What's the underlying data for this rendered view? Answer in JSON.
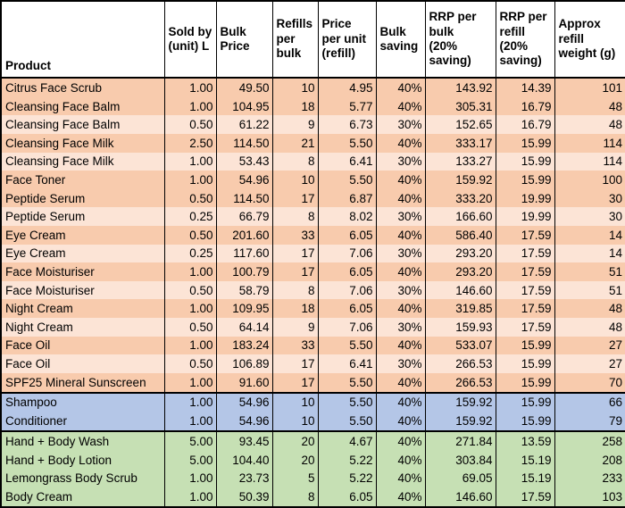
{
  "chart_data": {
    "type": "table",
    "columns": [
      "Product",
      "Sold by (unit) L",
      "Bulk Price",
      "Refills per bulk",
      "Price per unit (refill)",
      "Bulk saving",
      "RRP per bulk (20% saving)",
      "RRP per refill (20% saving)",
      "Approx refill weight (g)"
    ],
    "rows": [
      [
        "Citrus Face Scrub",
        "1.00",
        "49.50",
        "10",
        "4.95",
        "40%",
        "143.92",
        "14.39",
        "101"
      ],
      [
        "Cleansing Face Balm",
        "1.00",
        "104.95",
        "18",
        "5.77",
        "40%",
        "305.31",
        "16.79",
        "48"
      ],
      [
        "Cleansing Face Balm",
        "0.50",
        "61.22",
        "9",
        "6.73",
        "30%",
        "152.65",
        "16.79",
        "48"
      ],
      [
        "Cleansing Face Milk",
        "2.50",
        "114.50",
        "21",
        "5.50",
        "40%",
        "333.17",
        "15.99",
        "114"
      ],
      [
        "Cleansing Face Milk",
        "1.00",
        "53.43",
        "8",
        "6.41",
        "30%",
        "133.27",
        "15.99",
        "114"
      ],
      [
        "Face Toner",
        "1.00",
        "54.96",
        "10",
        "5.50",
        "40%",
        "159.92",
        "15.99",
        "100"
      ],
      [
        "Peptide Serum",
        "0.50",
        "114.50",
        "17",
        "6.87",
        "40%",
        "333.20",
        "19.99",
        "30"
      ],
      [
        "Peptide Serum",
        "0.25",
        "66.79",
        "8",
        "8.02",
        "30%",
        "166.60",
        "19.99",
        "30"
      ],
      [
        "Eye Cream",
        "0.50",
        "201.60",
        "33",
        "6.05",
        "40%",
        "586.40",
        "17.59",
        "14"
      ],
      [
        "Eye Cream",
        "0.25",
        "117.60",
        "17",
        "7.06",
        "30%",
        "293.20",
        "17.59",
        "14"
      ],
      [
        "Face Moisturiser",
        "1.00",
        "100.79",
        "17",
        "6.05",
        "40%",
        "293.20",
        "17.59",
        "51"
      ],
      [
        "Face Moisturiser",
        "0.50",
        "58.79",
        "8",
        "7.06",
        "30%",
        "146.60",
        "17.59",
        "51"
      ],
      [
        "Night Cream",
        "1.00",
        "109.95",
        "18",
        "6.05",
        "40%",
        "319.85",
        "17.59",
        "48"
      ],
      [
        "Night Cream",
        "0.50",
        "64.14",
        "9",
        "7.06",
        "30%",
        "159.93",
        "17.59",
        "48"
      ],
      [
        "Face Oil",
        "1.00",
        "183.24",
        "33",
        "5.50",
        "40%",
        "533.07",
        "15.99",
        "27"
      ],
      [
        "Face Oil",
        "0.50",
        "106.89",
        "17",
        "6.41",
        "30%",
        "266.53",
        "15.99",
        "27"
      ],
      [
        "SPF25 Mineral Sunscreen",
        "1.00",
        "91.60",
        "17",
        "5.50",
        "40%",
        "266.53",
        "15.99",
        "70"
      ],
      [
        "Shampoo",
        "1.00",
        "54.96",
        "10",
        "5.50",
        "40%",
        "159.92",
        "15.99",
        "66"
      ],
      [
        "Conditioner",
        "1.00",
        "54.96",
        "10",
        "5.50",
        "40%",
        "159.92",
        "15.99",
        "79"
      ],
      [
        "Hand + Body Wash",
        "5.00",
        "93.45",
        "20",
        "4.67",
        "40%",
        "271.84",
        "13.59",
        "258"
      ],
      [
        "Hand + Body Lotion",
        "5.00",
        "104.40",
        "20",
        "5.22",
        "40%",
        "303.84",
        "15.19",
        "208"
      ],
      [
        "Lemongrass Body Scrub",
        "1.00",
        "23.73",
        "5",
        "5.22",
        "40%",
        "69.05",
        "15.19",
        "233"
      ],
      [
        "Body Cream",
        "1.00",
        "50.39",
        "8",
        "6.05",
        "40%",
        "146.60",
        "17.59",
        "103"
      ]
    ],
    "row_tones": [
      "peachDark",
      "peachDark",
      "peachLight",
      "peachDark",
      "peachLight",
      "peachDark",
      "peachDark",
      "peachLight",
      "peachDark",
      "peachLight",
      "peachDark",
      "peachLight",
      "peachDark",
      "peachLight",
      "peachDark",
      "peachLight",
      "peachDark",
      "blue",
      "blue",
      "green",
      "green",
      "green",
      "green"
    ],
    "section_starts": [
      17,
      19
    ],
    "layout_hints": "grid on; header row bold on white; face products peach, hair products blue, body products green"
  },
  "header": {
    "labels": [
      "Product",
      "Sold by\n(unit) L",
      "Bulk\nPrice",
      "Refills\nper\nbulk",
      "Price\nper unit\n(refill)",
      "Bulk\nsaving",
      "RRP per\nbulk\n(20%\nsaving)",
      "RRP per\nrefill\n(20%\nsaving)",
      "Approx\nrefill\nweight (g)"
    ]
  },
  "colors": {
    "peachDark": "#F8CBAD",
    "peachLight": "#FCE4D6",
    "blue": "#B4C6E7",
    "green": "#C6E0B4",
    "headerBg": "#FFFFFF",
    "border": "#000000"
  }
}
